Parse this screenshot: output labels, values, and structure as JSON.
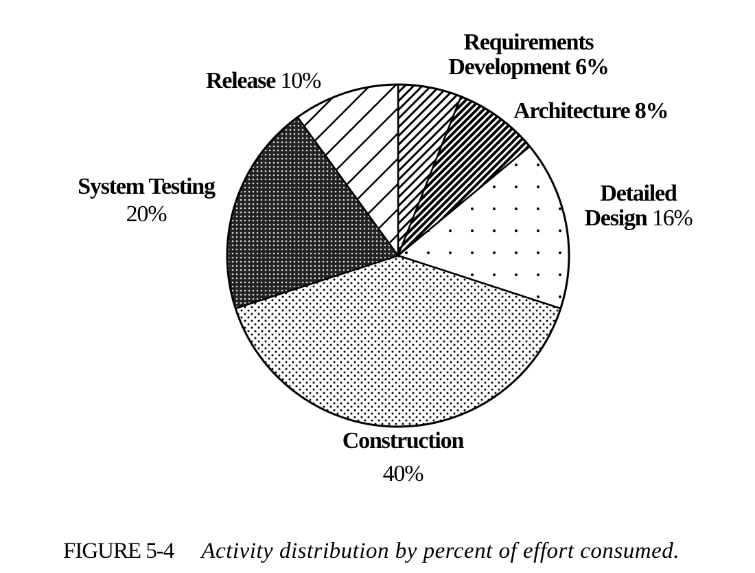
{
  "chart_data": {
    "type": "pie",
    "title": "",
    "start_angle": "top",
    "direction": "clockwise",
    "slices": [
      {
        "label": "Requirements Development",
        "value": 6,
        "pattern": "fine-diagonal-hatch"
      },
      {
        "label": "Architecture",
        "value": 8,
        "pattern": "dense-dark-diagonal-hatch"
      },
      {
        "label": "Detailed Design",
        "value": 16,
        "pattern": "sparse-dots"
      },
      {
        "label": "Construction",
        "value": 40,
        "pattern": "dense-dots"
      },
      {
        "label": "System Testing",
        "value": 20,
        "pattern": "dark-crosshatch"
      },
      {
        "label": "Release",
        "value": 10,
        "pattern": "wide-diagonal-lines"
      }
    ],
    "labels": {
      "req_line1": "Requirements",
      "req_line2": "Development",
      "req_pct": "6%",
      "arch": "Architecture",
      "arch_pct": "8%",
      "dd_line1": "Detailed",
      "dd_line2": "Design",
      "dd_pct": "16%",
      "cons": "Construction",
      "cons_pct": "40%",
      "st": "System Testing",
      "st_pct": "20%",
      "rel": "Release",
      "rel_pct": "10%"
    }
  },
  "caption": {
    "figure": "FIGURE 5-4",
    "text": "Activity distribution by percent of effort consumed."
  }
}
